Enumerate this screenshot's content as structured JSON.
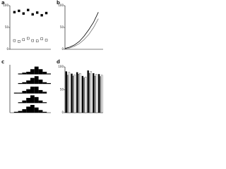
{
  "chart_data": [
    {
      "type": "scatter",
      "label": "a",
      "x": [
        1,
        2,
        3,
        4,
        5,
        6,
        7,
        8
      ],
      "xlim": [
        0,
        9
      ],
      "ylim": [
        0,
        100
      ],
      "yticks": [
        0,
        50,
        100
      ],
      "series": [
        {
          "color": "#000000",
          "values": [
            85,
            88,
            82,
            90,
            80,
            84,
            78,
            83
          ]
        },
        {
          "color": "#ffffff",
          "values": [
            20,
            18,
            22,
            25,
            20,
            19,
            24,
            21
          ]
        }
      ]
    },
    {
      "type": "line",
      "label": "b",
      "x": [
        0,
        1,
        2,
        3,
        4,
        5,
        6,
        7
      ],
      "xlim": [
        0,
        8
      ],
      "ylim": [
        0,
        100
      ],
      "yticks": [
        0,
        50,
        100
      ],
      "series": [
        {
          "color": "#000000",
          "values": [
            2,
            5,
            10,
            18,
            30,
            45,
            62,
            85
          ]
        },
        {
          "color": "#777777",
          "values": [
            1,
            3,
            7,
            13,
            22,
            34,
            50,
            70
          ]
        }
      ]
    },
    {
      "type": "histogram",
      "label": "c",
      "bins": [
        0,
        1,
        2,
        3,
        4,
        5,
        6,
        7,
        8,
        9,
        10
      ],
      "ylim": [
        0,
        10
      ],
      "series": [
        {
          "color": "#000000",
          "values": [
            0,
            0,
            1,
            2,
            3,
            6,
            9,
            6,
            3,
            1
          ]
        },
        {
          "color": "#000000",
          "values": [
            0,
            0,
            1,
            2,
            4,
            7,
            9,
            5,
            2,
            1
          ]
        },
        {
          "color": "#000000",
          "values": [
            0,
            1,
            1,
            3,
            5,
            8,
            8,
            4,
            2,
            0
          ]
        },
        {
          "color": "#000000",
          "values": [
            0,
            0,
            1,
            3,
            6,
            9,
            7,
            3,
            1,
            0
          ]
        },
        {
          "color": "#000000",
          "values": [
            0,
            1,
            2,
            4,
            7,
            9,
            6,
            3,
            1,
            0
          ]
        }
      ]
    },
    {
      "type": "bar",
      "label": "d",
      "categories": [
        null,
        null,
        null,
        null,
        null,
        null,
        null
      ],
      "ylim": [
        0,
        100
      ],
      "yticks": [
        0,
        50,
        100
      ],
      "series": [
        {
          "color": "#000000",
          "values": [
            90,
            85,
            88,
            80,
            92,
            86,
            84
          ]
        },
        {
          "color": "#888888",
          "values": [
            82,
            80,
            84,
            76,
            86,
            80,
            79
          ]
        },
        {
          "color": "#ffffff",
          "values": [
            88,
            83,
            86,
            78,
            90,
            84,
            82
          ]
        }
      ]
    }
  ]
}
